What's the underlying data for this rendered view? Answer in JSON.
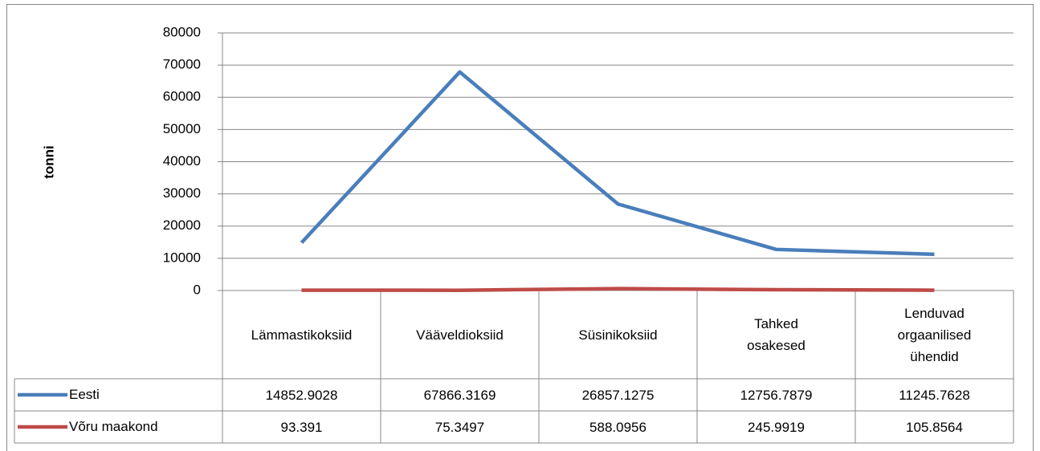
{
  "chart_data": {
    "type": "line",
    "y_label": "tonni",
    "categories": [
      "Lämmastikoksiid",
      "Vääveldioksiid",
      "Süsinikoksiid",
      "Tahked osakesed",
      "Lenduvad orgaanilised ühendid"
    ],
    "series": [
      {
        "name": "Eesti",
        "color": "#4a7ebb",
        "values": [
          14852.9028,
          67866.3169,
          26857.1275,
          12756.7879,
          11245.7628
        ]
      },
      {
        "name": "Võru maakond",
        "color": "#be4b48",
        "values": [
          93.391,
          75.3497,
          588.0956,
          245.9919,
          105.8564
        ]
      }
    ],
    "ylim": [
      0,
      80000
    ],
    "yticks": [
      0,
      10000,
      20000,
      30000,
      40000,
      50000,
      60000,
      70000,
      80000
    ],
    "grid": true,
    "data_table": true
  }
}
